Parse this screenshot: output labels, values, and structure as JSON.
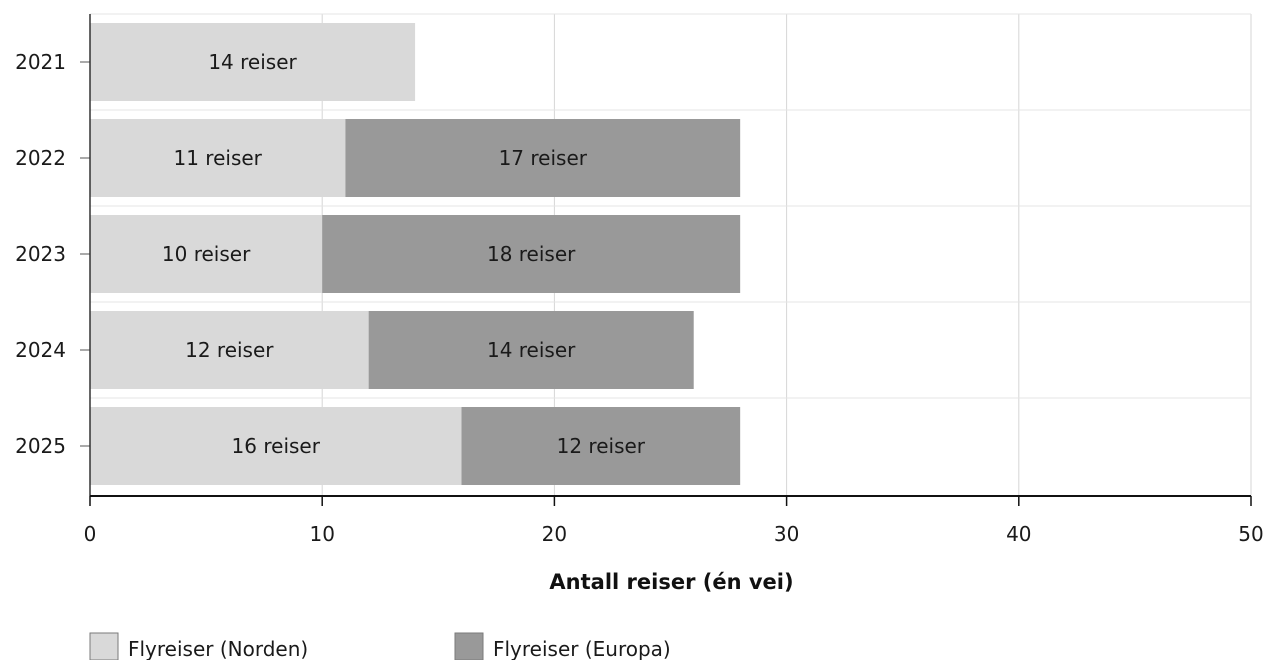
{
  "chart_data": {
    "type": "bar",
    "orientation": "horizontal",
    "stacked": true,
    "categories": [
      "2021",
      "2022",
      "2023",
      "2024",
      "2025"
    ],
    "series": [
      {
        "name": "Flyreiser (Norden)",
        "color": "#d9d9d9",
        "values": [
          14,
          11,
          10,
          12,
          16
        ],
        "labels": [
          "14 reiser",
          "11 reiser",
          "10 reiser",
          "12 reiser",
          "16 reiser"
        ]
      },
      {
        "name": "Flyreiser (Europa)",
        "color": "#999999",
        "values": [
          0,
          17,
          18,
          14,
          12
        ],
        "labels": [
          "",
          "17 reiser",
          "18 reiser",
          "14 reiser",
          "12 reiser"
        ]
      }
    ],
    "xlabel": "Antall reiser (én vei)",
    "ylabel": "",
    "xlim": [
      0,
      50
    ],
    "xticks": [
      "0",
      "10",
      "20",
      "30",
      "40",
      "50"
    ],
    "grid": true,
    "legend_position": "bottom-left"
  }
}
